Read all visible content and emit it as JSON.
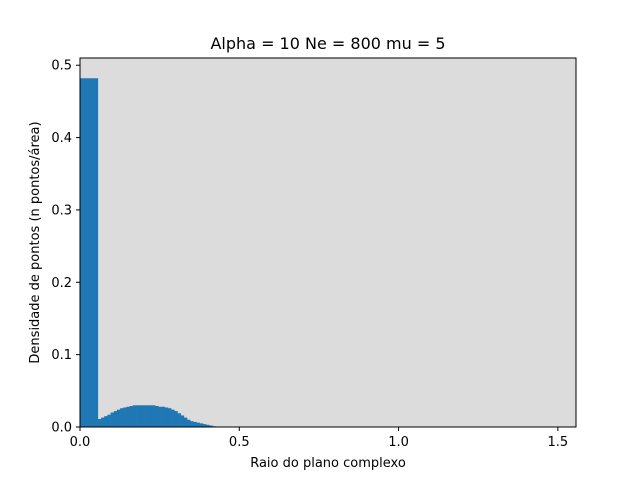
{
  "chart_data": {
    "type": "bar",
    "title": "Alpha = 10 Ne = 800 mu = 5",
    "xlabel": "Raio do plano complexo",
    "ylabel": "Densidade de pontos (n pontos/área)",
    "xlim": [
      0,
      1.557
    ],
    "ylim": [
      0,
      0.51
    ],
    "xticks": [
      0.0,
      0.5,
      1.0,
      1.5
    ],
    "xtick_labels": [
      "0.0",
      "0.5",
      "1.0",
      "1.5"
    ],
    "yticks": [
      0.0,
      0.1,
      0.2,
      0.3,
      0.4,
      0.5
    ],
    "ytick_labels": [
      "0.0",
      "0.1",
      "0.2",
      "0.3",
      "0.4",
      "0.5"
    ],
    "grid": false,
    "colors": {
      "bar": "#1f77b4",
      "plot_background": "#dcdcdc",
      "figure_background": "#ffffff"
    },
    "bins": [
      {
        "x0": 0.0,
        "x1": 0.056,
        "value": 0.482
      },
      {
        "x0": 0.056,
        "x1": 0.066,
        "value": 0.011
      },
      {
        "x0": 0.066,
        "x1": 0.076,
        "value": 0.013
      },
      {
        "x0": 0.076,
        "x1": 0.086,
        "value": 0.015
      },
      {
        "x0": 0.086,
        "x1": 0.096,
        "value": 0.017
      },
      {
        "x0": 0.096,
        "x1": 0.106,
        "value": 0.02
      },
      {
        "x0": 0.106,
        "x1": 0.116,
        "value": 0.022
      },
      {
        "x0": 0.116,
        "x1": 0.126,
        "value": 0.024
      },
      {
        "x0": 0.126,
        "x1": 0.136,
        "value": 0.026
      },
      {
        "x0": 0.136,
        "x1": 0.146,
        "value": 0.027
      },
      {
        "x0": 0.146,
        "x1": 0.156,
        "value": 0.028
      },
      {
        "x0": 0.156,
        "x1": 0.166,
        "value": 0.029
      },
      {
        "x0": 0.166,
        "x1": 0.176,
        "value": 0.03
      },
      {
        "x0": 0.176,
        "x1": 0.186,
        "value": 0.03
      },
      {
        "x0": 0.186,
        "x1": 0.196,
        "value": 0.03
      },
      {
        "x0": 0.196,
        "x1": 0.206,
        "value": 0.03
      },
      {
        "x0": 0.206,
        "x1": 0.216,
        "value": 0.03
      },
      {
        "x0": 0.216,
        "x1": 0.226,
        "value": 0.03
      },
      {
        "x0": 0.226,
        "x1": 0.236,
        "value": 0.03
      },
      {
        "x0": 0.236,
        "x1": 0.246,
        "value": 0.029
      },
      {
        "x0": 0.246,
        "x1": 0.256,
        "value": 0.028
      },
      {
        "x0": 0.256,
        "x1": 0.266,
        "value": 0.028
      },
      {
        "x0": 0.266,
        "x1": 0.276,
        "value": 0.027
      },
      {
        "x0": 0.276,
        "x1": 0.286,
        "value": 0.026
      },
      {
        "x0": 0.286,
        "x1": 0.296,
        "value": 0.024
      },
      {
        "x0": 0.296,
        "x1": 0.306,
        "value": 0.022
      },
      {
        "x0": 0.306,
        "x1": 0.316,
        "value": 0.019
      },
      {
        "x0": 0.316,
        "x1": 0.326,
        "value": 0.016
      },
      {
        "x0": 0.326,
        "x1": 0.336,
        "value": 0.013
      },
      {
        "x0": 0.336,
        "x1": 0.346,
        "value": 0.01
      },
      {
        "x0": 0.346,
        "x1": 0.356,
        "value": 0.008
      },
      {
        "x0": 0.356,
        "x1": 0.366,
        "value": 0.007
      },
      {
        "x0": 0.366,
        "x1": 0.376,
        "value": 0.006
      },
      {
        "x0": 0.376,
        "x1": 0.386,
        "value": 0.005
      },
      {
        "x0": 0.386,
        "x1": 0.396,
        "value": 0.004
      },
      {
        "x0": 0.396,
        "x1": 0.406,
        "value": 0.003
      },
      {
        "x0": 0.406,
        "x1": 0.416,
        "value": 0.002
      },
      {
        "x0": 0.416,
        "x1": 0.426,
        "value": 0.001
      },
      {
        "x0": 0.426,
        "x1": 0.436,
        "value": 0.0005
      }
    ]
  }
}
